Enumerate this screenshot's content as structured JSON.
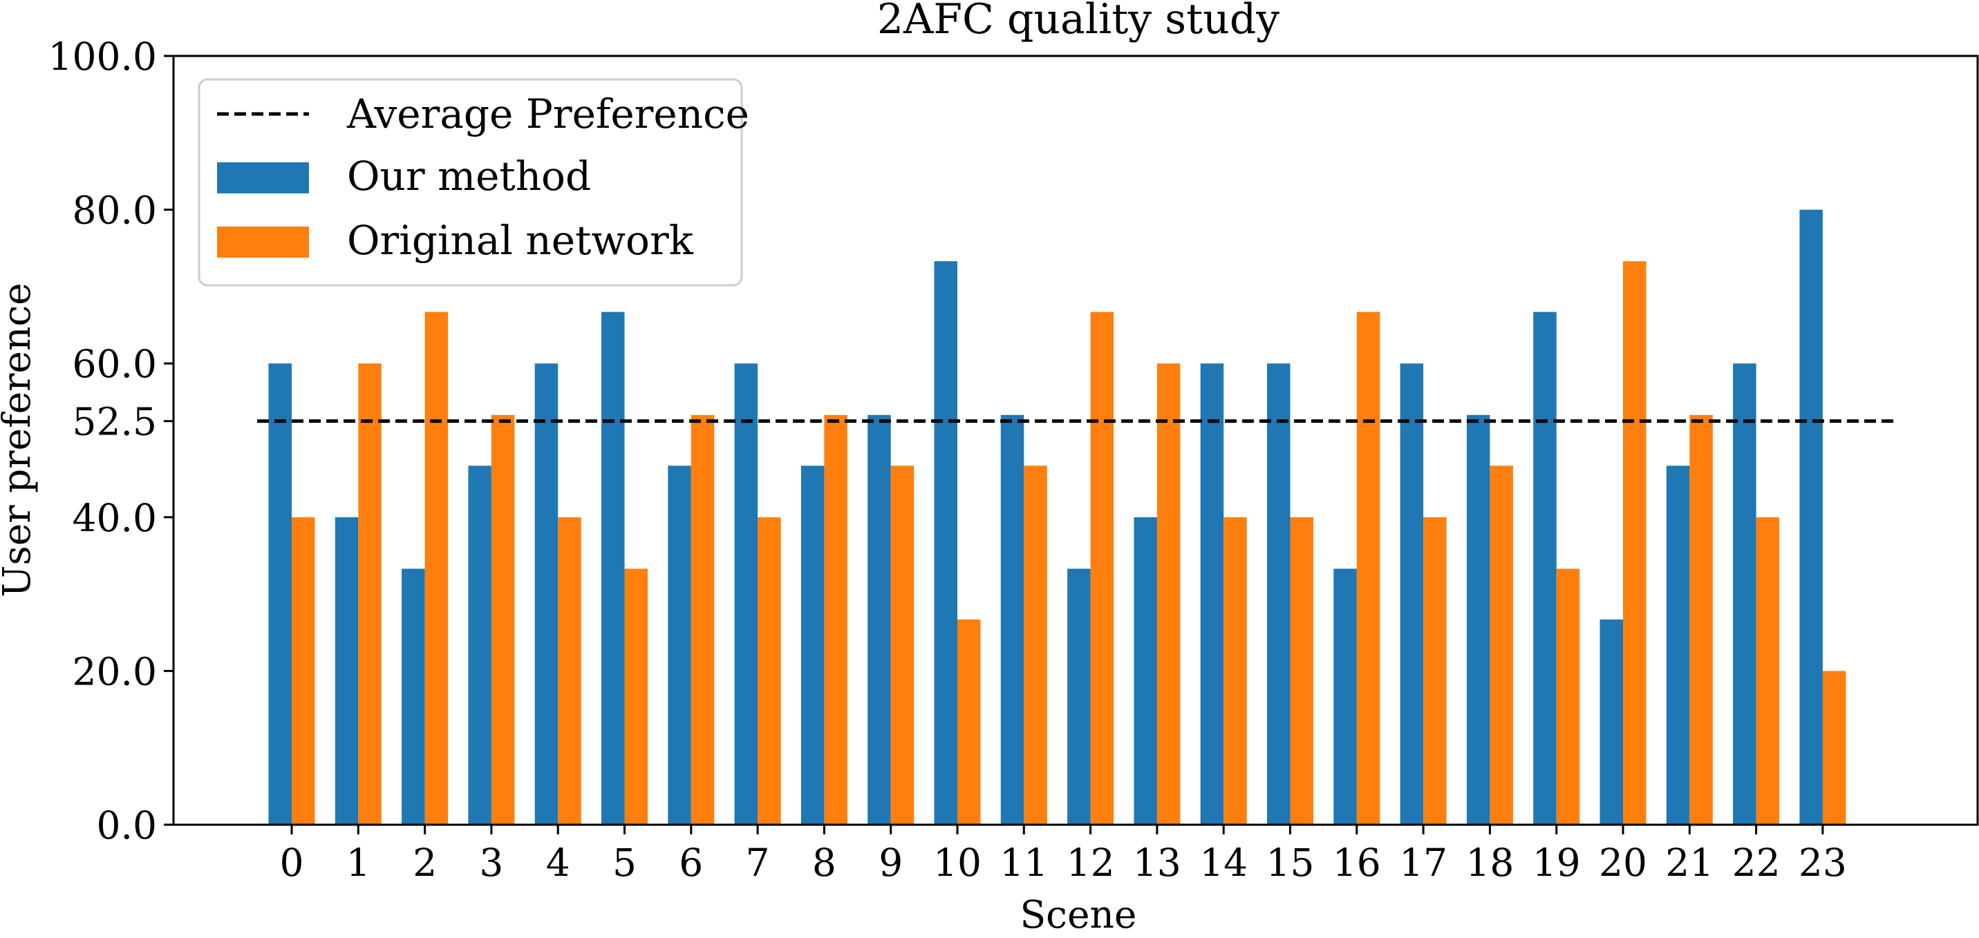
{
  "chart_data": {
    "type": "bar",
    "title": "2AFC quality study",
    "xlabel": "Scene",
    "ylabel": "User preference",
    "categories": [
      "0",
      "1",
      "2",
      "3",
      "4",
      "5",
      "6",
      "7",
      "8",
      "9",
      "10",
      "11",
      "12",
      "13",
      "14",
      "15",
      "16",
      "17",
      "18",
      "19",
      "20",
      "21",
      "22",
      "23"
    ],
    "series": [
      {
        "name": "Our method",
        "color": "#1f77b4",
        "values": [
          60.0,
          40.0,
          33.3,
          46.7,
          60.0,
          66.7,
          46.7,
          60.0,
          46.7,
          53.3,
          73.3,
          53.3,
          33.3,
          40.0,
          60.0,
          60.0,
          33.3,
          60.0,
          53.3,
          66.7,
          26.7,
          46.7,
          60.0,
          80.0
        ]
      },
      {
        "name": "Original network",
        "color": "#ff7f0e",
        "values": [
          40.0,
          60.0,
          66.7,
          53.3,
          40.0,
          33.3,
          53.3,
          40.0,
          53.3,
          46.7,
          26.7,
          46.7,
          66.7,
          60.0,
          40.0,
          40.0,
          66.7,
          40.0,
          46.7,
          33.3,
          73.3,
          53.3,
          40.0,
          20.0
        ]
      }
    ],
    "reference_line": {
      "name": "Average Preference",
      "value": 52.5,
      "style": "dashed",
      "color": "#000000"
    },
    "yticks": [
      0.0,
      20.0,
      40.0,
      52.5,
      60.0,
      80.0,
      100.0
    ],
    "ytick_labels": [
      "0.0",
      "20.0",
      "40.0",
      "52.5",
      "60.0",
      "80.0",
      "100.0"
    ],
    "ylim": [
      0,
      100
    ],
    "legend": {
      "position": "top-left",
      "entries": [
        "Average Preference",
        "Our method",
        "Original network"
      ]
    },
    "grid": false
  }
}
